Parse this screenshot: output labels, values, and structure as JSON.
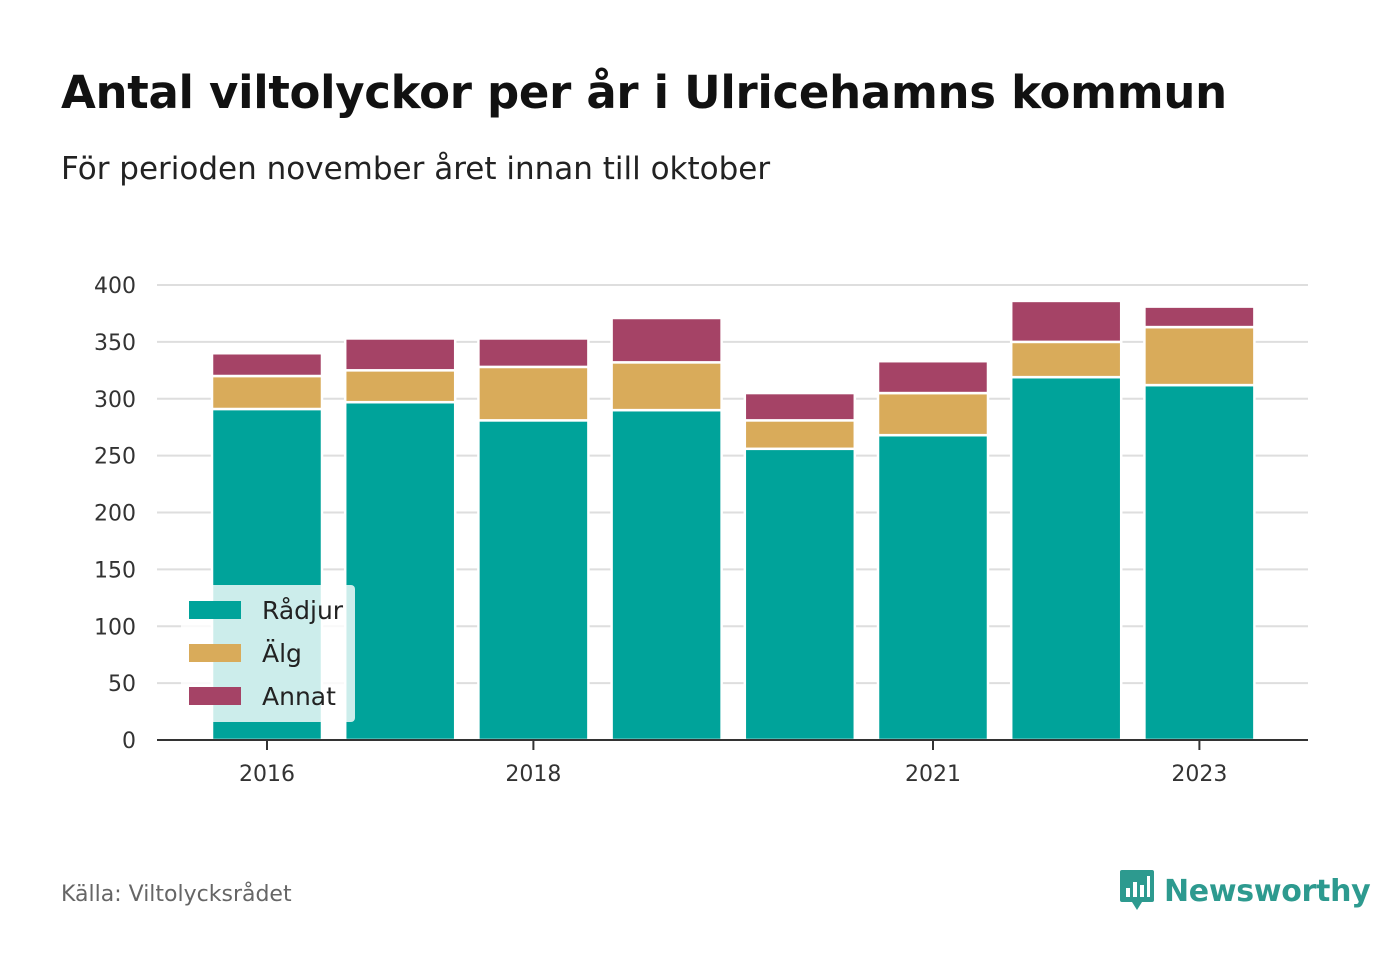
{
  "title": "Antal viltolyckor per år i Ulricehamns kommun",
  "subtitle": "För perioden november året innan till oktober",
  "source": "Källa: Viltolycksrådet",
  "brand": {
    "name": "Newsworthy",
    "icon": "newsworthy-chart-bubble-icon",
    "color": "#2d9a8f"
  },
  "chart_data": {
    "type": "bar",
    "stacked": true,
    "categories": [
      "2016",
      "2017",
      "2018",
      "2019",
      "2020",
      "2021",
      "2022",
      "2023"
    ],
    "x_tick_labels": [
      "2016",
      "2018",
      "2021",
      "2023"
    ],
    "series": [
      {
        "name": "Rådjur",
        "color": "#00a39a",
        "values": [
          291,
          297,
          281,
          290,
          256,
          268,
          319,
          312
        ]
      },
      {
        "name": "Älg",
        "color": "#d9ab5a",
        "values": [
          29,
          28,
          47,
          42,
          25,
          37,
          31,
          51
        ]
      },
      {
        "name": "Annat",
        "color": "#a54366",
        "values": [
          20,
          28,
          25,
          39,
          24,
          28,
          36,
          18
        ]
      }
    ],
    "ylim": [
      0,
      400
    ],
    "y_ticks": [
      0,
      50,
      100,
      150,
      200,
      250,
      300,
      350,
      400
    ],
    "grid": true,
    "legend_position": "bottom-left"
  }
}
